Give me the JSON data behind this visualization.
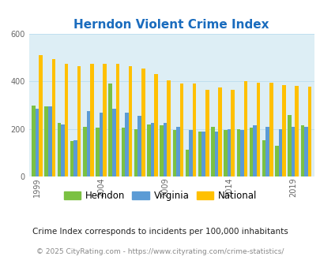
{
  "title": "Herndon Violent Crime Index",
  "title_color": "#1a6cbe",
  "years": [
    1999,
    2000,
    2001,
    2002,
    2003,
    2004,
    2005,
    2006,
    2007,
    2008,
    2009,
    2010,
    2011,
    2012,
    2013,
    2014,
    2015,
    2016,
    2017,
    2018,
    2019,
    2020
  ],
  "herndon": [
    300,
    295,
    225,
    150,
    210,
    205,
    390,
    205,
    200,
    220,
    215,
    195,
    115,
    190,
    210,
    195,
    200,
    205,
    155,
    130,
    260,
    215
  ],
  "virginia": [
    285,
    295,
    220,
    155,
    275,
    270,
    285,
    270,
    255,
    225,
    225,
    210,
    195,
    190,
    190,
    200,
    195,
    215,
    210,
    200,
    210,
    210
  ],
  "national": [
    510,
    495,
    475,
    465,
    475,
    475,
    475,
    465,
    455,
    430,
    405,
    390,
    390,
    365,
    375,
    365,
    400,
    395,
    395,
    385,
    380,
    378
  ],
  "herndon_color": "#7bc142",
  "virginia_color": "#5b9bd5",
  "national_color": "#ffc000",
  "bg_color": "#ddeef5",
  "ylim": [
    0,
    600
  ],
  "yticks": [
    0,
    200,
    400,
    600
  ],
  "xlabel_ticks": [
    1999,
    2004,
    2009,
    2014,
    2019
  ],
  "footnote1": "Crime Index corresponds to incidents per 100,000 inhabitants",
  "footnote2": "© 2025 CityRating.com - https://www.cityrating.com/crime-statistics/",
  "bar_width": 0.28
}
